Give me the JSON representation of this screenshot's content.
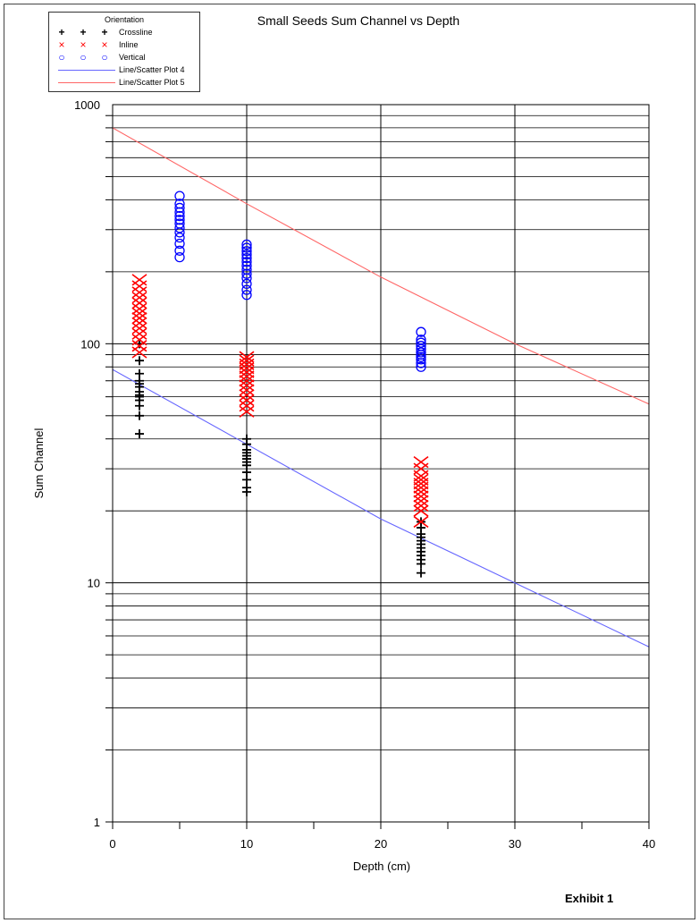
{
  "chart_data": {
    "type": "scatter",
    "title": "Small Seeds Sum Channel vs Depth",
    "xlabel": "Depth (cm)",
    "ylabel": "Sum Channel",
    "xlim": [
      0,
      40
    ],
    "ylim": [
      1,
      1000
    ],
    "yscale": "log",
    "grid": true,
    "x_ticks": [
      0,
      10,
      20,
      30,
      40
    ],
    "y_ticks": [
      1,
      10,
      100,
      1000
    ],
    "legend": {
      "title": "Orientation",
      "placement": "top-left",
      "entries": [
        {
          "label": "Crossline",
          "symbol": "+",
          "color": "#000000"
        },
        {
          "label": "Inline",
          "symbol": "×",
          "color": "#ff0000"
        },
        {
          "label": "Vertical",
          "symbol": "○",
          "color": "#0000ff"
        },
        {
          "label": "Line/Scatter Plot 4",
          "symbol": "line",
          "color": "#6666ff"
        },
        {
          "label": "Line/Scatter Plot 5",
          "symbol": "line",
          "color": "#ff6666"
        }
      ]
    },
    "series": [
      {
        "name": "Crossline",
        "marker": "plus",
        "color": "#000000",
        "x": [
          2,
          2,
          2,
          2,
          2,
          2,
          2,
          2,
          2,
          2,
          2,
          2,
          2,
          10,
          10,
          10,
          10,
          10,
          10,
          10,
          10,
          10,
          10,
          10,
          10,
          23,
          23,
          23,
          23,
          23,
          23,
          23,
          23,
          23,
          23,
          23,
          23
        ],
        "y": [
          42,
          50,
          55,
          58,
          60,
          61,
          63,
          66,
          68,
          70,
          75,
          85,
          100,
          24,
          25,
          27,
          29,
          31,
          32,
          33,
          34,
          35,
          36,
          38,
          40,
          11,
          12,
          12.5,
          13,
          13.5,
          14,
          14.5,
          15,
          15.5,
          16,
          17,
          18
        ]
      },
      {
        "name": "Inline",
        "marker": "x",
        "color": "#ff0000",
        "x": [
          2,
          2,
          2,
          2,
          2,
          2,
          2,
          2,
          2,
          2,
          2,
          2,
          2,
          2,
          10,
          10,
          10,
          10,
          10,
          10,
          10,
          10,
          10,
          10,
          10,
          10,
          10,
          23,
          23,
          23,
          23,
          23,
          23,
          23,
          23,
          23,
          23,
          23,
          23
        ],
        "y": [
          92,
          98,
          104,
          110,
          116,
          122,
          128,
          134,
          140,
          148,
          156,
          164,
          174,
          185,
          52,
          55,
          58,
          61,
          64,
          67,
          70,
          73,
          76,
          79,
          82,
          85,
          88,
          18,
          20,
          21,
          22,
          23,
          24,
          25,
          26,
          27,
          28,
          30,
          32
        ]
      },
      {
        "name": "Vertical",
        "marker": "circle",
        "color": "#0000ff",
        "x": [
          5,
          5,
          5,
          5,
          5,
          5,
          5,
          5,
          5,
          5,
          5,
          5,
          5,
          10,
          10,
          10,
          10,
          10,
          10,
          10,
          10,
          10,
          10,
          10,
          10,
          10,
          23,
          23,
          23,
          23,
          23,
          23,
          23,
          23,
          23,
          23,
          23
        ],
        "y": [
          230,
          245,
          262,
          278,
          292,
          305,
          318,
          330,
          342,
          355,
          370,
          385,
          415,
          160,
          168,
          178,
          188,
          196,
          204,
          212,
          220,
          228,
          236,
          244,
          252,
          260,
          80,
          83,
          86,
          88,
          90,
          92,
          95,
          98,
          101,
          104,
          112
        ]
      },
      {
        "name": "Line/Scatter Plot 4",
        "type": "line",
        "color": "#6666ff",
        "x": [
          0,
          10,
          20,
          30,
          40
        ],
        "y": [
          78,
          38,
          18.5,
          10,
          5.4
        ]
      },
      {
        "name": "Line/Scatter Plot 5",
        "type": "line",
        "color": "#ff6666",
        "x": [
          0,
          10,
          20,
          30,
          40
        ],
        "y": [
          800,
          385,
          190,
          100,
          56
        ]
      }
    ],
    "annotations": [
      "Exhibit 1"
    ]
  }
}
